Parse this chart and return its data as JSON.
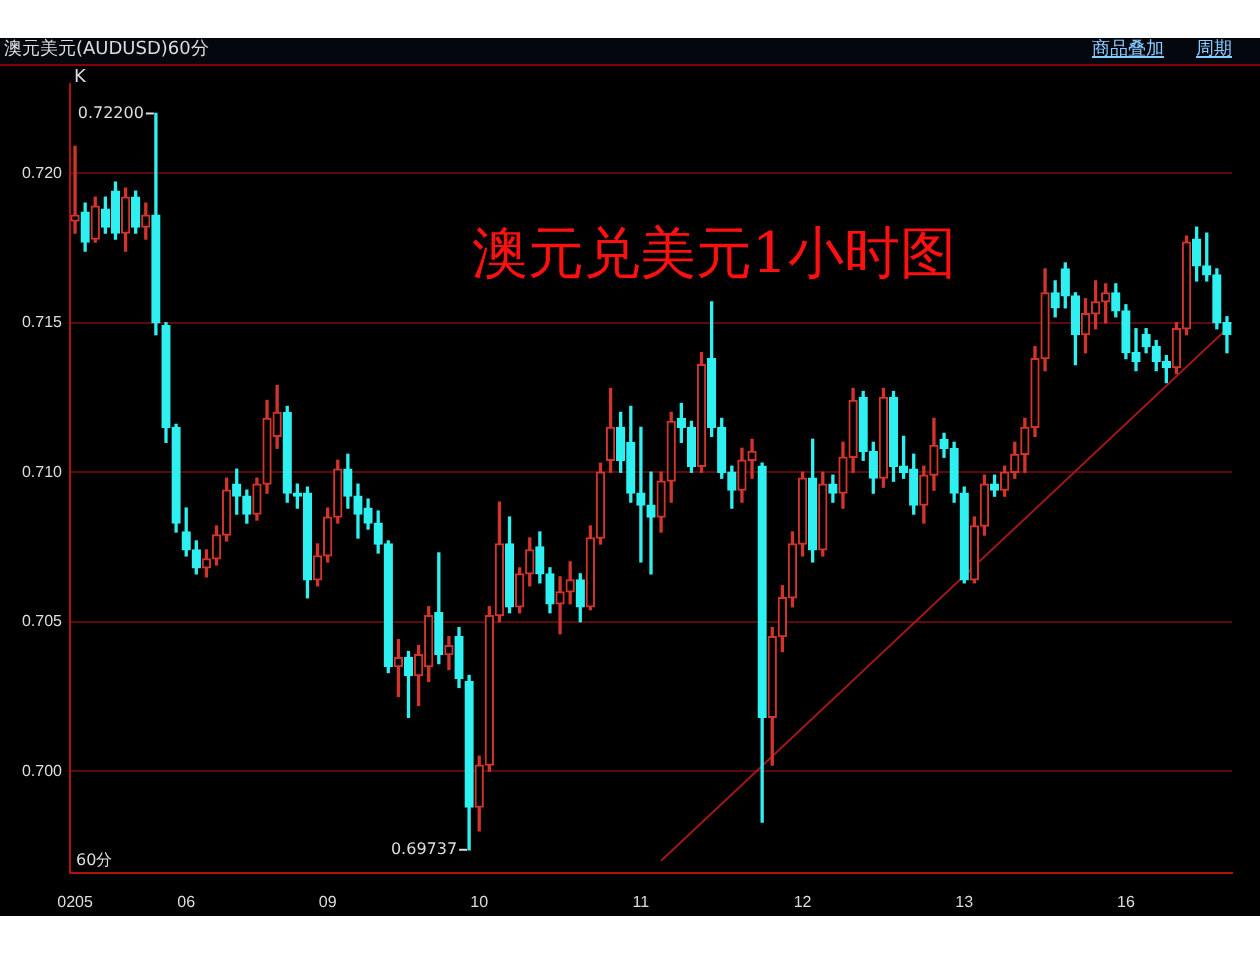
{
  "chart_data": {
    "type": "candlestick",
    "title": "澳元美元(AUDUSD)60分",
    "annotations": [
      "K",
      "澳元兑美元1小时图",
      "60分",
      "商品叠加",
      "周期",
      "0.72200",
      "0.69737"
    ],
    "categories": [
      "0205",
      null,
      null,
      null,
      null,
      null,
      null,
      null,
      null,
      null,
      null,
      "06",
      null,
      null,
      null,
      null,
      null,
      null,
      null,
      null,
      null,
      null,
      null,
      null,
      null,
      "09",
      null,
      null,
      null,
      null,
      null,
      null,
      null,
      null,
      null,
      null,
      null,
      null,
      null,
      null,
      "10",
      null,
      null,
      null,
      null,
      null,
      null,
      null,
      null,
      null,
      null,
      null,
      null,
      null,
      null,
      null,
      "11",
      null,
      null,
      null,
      null,
      null,
      null,
      null,
      null,
      null,
      null,
      null,
      null,
      null,
      null,
      null,
      "12",
      null,
      null,
      null,
      null,
      null,
      null,
      null,
      null,
      null,
      null,
      null,
      null,
      null,
      null,
      null,
      "13",
      null,
      null,
      null,
      null,
      null,
      null,
      null,
      null,
      null,
      null,
      null,
      null,
      null,
      null,
      null,
      "16",
      null,
      null,
      null,
      null,
      null,
      null,
      null,
      null,
      null,
      null
    ],
    "ohlc": [
      [
        0.7184,
        0.7209,
        0.718,
        0.7186
      ],
      [
        0.7187,
        0.719,
        0.7174,
        0.7177
      ],
      [
        0.7178,
        0.7192,
        0.7177,
        0.7189
      ],
      [
        0.7188,
        0.7192,
        0.718,
        0.7182
      ],
      [
        0.7194,
        0.7197,
        0.7178,
        0.718
      ],
      [
        0.718,
        0.7195,
        0.7174,
        0.7192
      ],
      [
        0.7192,
        0.7194,
        0.718,
        0.7182
      ],
      [
        0.7182,
        0.719,
        0.7178,
        0.7186
      ],
      [
        0.7186,
        0.722,
        0.7146,
        0.715
      ],
      [
        0.7149,
        0.715,
        0.711,
        0.7115
      ],
      [
        0.7115,
        0.7116,
        0.708,
        0.7083
      ],
      [
        0.708,
        0.7088,
        0.7072,
        0.7074
      ],
      [
        0.7074,
        0.7077,
        0.7066,
        0.7068
      ],
      [
        0.7068,
        0.7074,
        0.7065,
        0.7071
      ],
      [
        0.7071,
        0.7082,
        0.7069,
        0.7079
      ],
      [
        0.7079,
        0.7098,
        0.7077,
        0.7094
      ],
      [
        0.7096,
        0.7101,
        0.7086,
        0.7092
      ],
      [
        0.7092,
        0.7094,
        0.7083,
        0.7086
      ],
      [
        0.7086,
        0.7098,
        0.7084,
        0.7096
      ],
      [
        0.7096,
        0.7124,
        0.7093,
        0.7118
      ],
      [
        0.7112,
        0.7129,
        0.7108,
        0.712
      ],
      [
        0.712,
        0.7122,
        0.709,
        0.7093
      ],
      [
        0.7093,
        0.7096,
        0.7088,
        0.7092
      ],
      [
        0.7093,
        0.7095,
        0.7058,
        0.7064
      ],
      [
        0.7064,
        0.7076,
        0.7062,
        0.7072
      ],
      [
        0.7072,
        0.7088,
        0.707,
        0.7085
      ],
      [
        0.7085,
        0.7104,
        0.7083,
        0.7101
      ],
      [
        0.7101,
        0.7106,
        0.7088,
        0.7092
      ],
      [
        0.7092,
        0.7096,
        0.7078,
        0.7086
      ],
      [
        0.7088,
        0.7091,
        0.7081,
        0.7083
      ],
      [
        0.7083,
        0.7087,
        0.7073,
        0.7076
      ],
      [
        0.7076,
        0.7077,
        0.7033,
        0.7035
      ],
      [
        0.7035,
        0.7044,
        0.7025,
        0.7038
      ],
      [
        0.7038,
        0.704,
        0.7018,
        0.7032
      ],
      [
        0.7032,
        0.7042,
        0.7022,
        0.7039
      ],
      [
        0.7035,
        0.7055,
        0.703,
        0.7052
      ],
      [
        0.7053,
        0.7073,
        0.7036,
        0.7039
      ],
      [
        0.7039,
        0.7045,
        0.7034,
        0.7042
      ],
      [
        0.7045,
        0.7048,
        0.7028,
        0.7031
      ],
      [
        0.703,
        0.7032,
        0.69737,
        0.6988
      ],
      [
        0.6988,
        0.7005,
        0.698,
        0.7002
      ],
      [
        0.7002,
        0.7055,
        0.7,
        0.7052
      ],
      [
        0.7052,
        0.709,
        0.705,
        0.7076
      ],
      [
        0.7076,
        0.7085,
        0.7053,
        0.7055
      ],
      [
        0.7055,
        0.7068,
        0.7053,
        0.7066
      ],
      [
        0.7066,
        0.7078,
        0.7062,
        0.7074
      ],
      [
        0.7075,
        0.708,
        0.7063,
        0.7066
      ],
      [
        0.7066,
        0.7068,
        0.7053,
        0.7056
      ],
      [
        0.7056,
        0.7065,
        0.7046,
        0.706
      ],
      [
        0.706,
        0.707,
        0.7056,
        0.7064
      ],
      [
        0.7064,
        0.7066,
        0.705,
        0.7055
      ],
      [
        0.7055,
        0.7082,
        0.7054,
        0.7078
      ],
      [
        0.7078,
        0.7103,
        0.7076,
        0.71
      ],
      [
        0.7104,
        0.7128,
        0.71,
        0.7115
      ],
      [
        0.7115,
        0.712,
        0.71,
        0.7104
      ],
      [
        0.711,
        0.7122,
        0.709,
        0.7093
      ],
      [
        0.7093,
        0.7115,
        0.707,
        0.7089
      ],
      [
        0.7089,
        0.71,
        0.7066,
        0.7085
      ],
      [
        0.7085,
        0.71,
        0.708,
        0.7097
      ],
      [
        0.7097,
        0.712,
        0.709,
        0.7117
      ],
      [
        0.7118,
        0.7123,
        0.711,
        0.7115
      ],
      [
        0.7115,
        0.7117,
        0.71,
        0.7102
      ],
      [
        0.7102,
        0.714,
        0.71,
        0.7136
      ],
      [
        0.7138,
        0.7157,
        0.7112,
        0.7115
      ],
      [
        0.7115,
        0.7118,
        0.7098,
        0.71
      ],
      [
        0.71,
        0.7102,
        0.7088,
        0.7094
      ],
      [
        0.7094,
        0.7108,
        0.709,
        0.7104
      ],
      [
        0.7104,
        0.7111,
        0.7098,
        0.7107
      ],
      [
        0.7102,
        0.7103,
        0.6983,
        0.7018
      ],
      [
        0.7018,
        0.7048,
        0.7002,
        0.7045
      ],
      [
        0.7045,
        0.7062,
        0.704,
        0.7058
      ],
      [
        0.7058,
        0.708,
        0.7055,
        0.7076
      ],
      [
        0.7076,
        0.71,
        0.7072,
        0.7098
      ],
      [
        0.7098,
        0.7111,
        0.707,
        0.7074
      ],
      [
        0.7074,
        0.71,
        0.7072,
        0.7096
      ],
      [
        0.7096,
        0.7099,
        0.709,
        0.7093
      ],
      [
        0.7093,
        0.711,
        0.7088,
        0.7105
      ],
      [
        0.7105,
        0.7128,
        0.71,
        0.7124
      ],
      [
        0.7125,
        0.7127,
        0.7104,
        0.7107
      ],
      [
        0.7107,
        0.711,
        0.7093,
        0.7098
      ],
      [
        0.7098,
        0.7128,
        0.7095,
        0.7125
      ],
      [
        0.7125,
        0.7127,
        0.7097,
        0.7102
      ],
      [
        0.7102,
        0.7112,
        0.7098,
        0.71
      ],
      [
        0.7101,
        0.7106,
        0.7086,
        0.7089
      ],
      [
        0.7089,
        0.7102,
        0.7083,
        0.7099
      ],
      [
        0.7099,
        0.7118,
        0.7094,
        0.7109
      ],
      [
        0.7111,
        0.7113,
        0.7105,
        0.7108
      ],
      [
        0.7108,
        0.711,
        0.709,
        0.7093
      ],
      [
        0.7093,
        0.7095,
        0.7063,
        0.7064
      ],
      [
        0.7064,
        0.7085,
        0.7063,
        0.7082
      ],
      [
        0.7082,
        0.7099,
        0.7079,
        0.7096
      ],
      [
        0.7096,
        0.7099,
        0.7092,
        0.7094
      ],
      [
        0.7094,
        0.7102,
        0.7092,
        0.71
      ],
      [
        0.71,
        0.711,
        0.7098,
        0.7106
      ],
      [
        0.7106,
        0.7118,
        0.71,
        0.7115
      ],
      [
        0.7115,
        0.7142,
        0.7112,
        0.7138
      ],
      [
        0.7138,
        0.7168,
        0.7134,
        0.716
      ],
      [
        0.716,
        0.7164,
        0.7152,
        0.7155
      ],
      [
        0.7168,
        0.717,
        0.7155,
        0.7159
      ],
      [
        0.7159,
        0.716,
        0.7136,
        0.7146
      ],
      [
        0.7146,
        0.7158,
        0.714,
        0.7153
      ],
      [
        0.7153,
        0.7164,
        0.7148,
        0.7157
      ],
      [
        0.7157,
        0.7163,
        0.715,
        0.716
      ],
      [
        0.716,
        0.7163,
        0.7152,
        0.7154
      ],
      [
        0.7154,
        0.7156,
        0.7138,
        0.714
      ],
      [
        0.714,
        0.7148,
        0.7134,
        0.7137
      ],
      [
        0.7146,
        0.7148,
        0.714,
        0.7142
      ],
      [
        0.7142,
        0.7144,
        0.7134,
        0.7137
      ],
      [
        0.7137,
        0.7139,
        0.713,
        0.7135
      ],
      [
        0.7135,
        0.715,
        0.7133,
        0.7148
      ],
      [
        0.7148,
        0.7179,
        0.7146,
        0.7177
      ],
      [
        0.7178,
        0.7182,
        0.7164,
        0.7169
      ],
      [
        0.7169,
        0.718,
        0.7164,
        0.7166
      ],
      [
        0.7166,
        0.7168,
        0.7148,
        0.715
      ],
      [
        0.715,
        0.7152,
        0.714,
        0.7146
      ]
    ],
    "series": [
      {
        "type": "line",
        "color": "#a01818",
        "values": [
          null,
          null,
          null,
          null,
          null,
          null,
          null,
          null,
          null,
          null,
          null,
          null,
          null,
          null,
          null,
          null,
          null,
          null,
          null,
          null,
          null,
          null,
          null,
          null,
          null,
          null,
          null,
          null,
          null,
          null,
          null,
          null,
          null,
          null,
          null,
          null,
          null,
          null,
          null,
          null,
          null,
          null,
          null,
          null,
          null,
          null,
          null,
          null,
          null,
          null,
          null,
          null,
          null,
          null,
          null,
          null,
          null,
          null,
          0.697,
          null,
          null,
          null,
          null,
          null,
          null,
          null,
          null,
          null,
          null,
          null,
          null,
          null,
          null,
          null,
          null,
          null,
          null,
          null,
          null,
          null,
          null,
          null,
          null,
          null,
          null,
          null,
          null,
          null,
          null,
          null,
          null,
          null,
          null,
          null,
          null,
          null,
          null,
          null,
          null,
          null,
          null,
          null,
          null,
          null,
          null,
          null,
          null,
          null,
          null,
          null,
          null,
          null,
          null,
          null,
          0.7148
        ]
      }
    ],
    "ylim": [
      0.6966,
      0.723
    ],
    "yticks": [
      {
        "value": 0.7,
        "label": "0.700"
      },
      {
        "value": 0.705,
        "label": "0.705"
      },
      {
        "value": 0.71,
        "label": "0.710"
      },
      {
        "value": 0.715,
        "label": "0.715"
      },
      {
        "value": 0.72,
        "label": "0.720"
      }
    ],
    "grid": "y",
    "legend": false
  }
}
